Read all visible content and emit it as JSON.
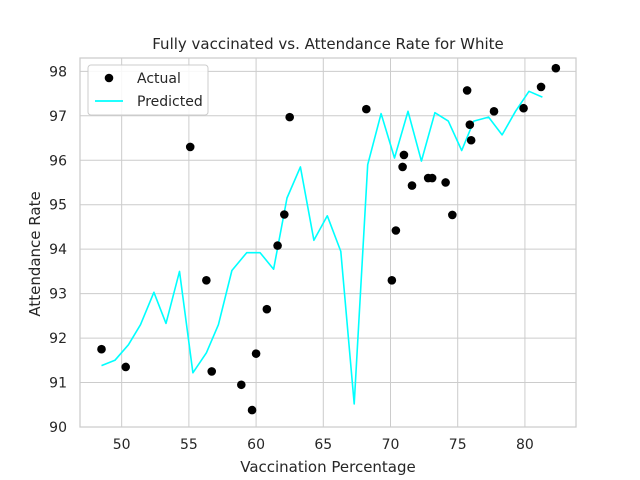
{
  "chart_data": {
    "type": "scatter",
    "title": "Fully vaccinated vs. Attendance Rate for White",
    "xlabel": "Vaccination Percentage",
    "ylabel": "Attendance Rate",
    "xlim": [
      46.9,
      83.8
    ],
    "ylim": [
      90.0,
      98.3
    ],
    "xticks": [
      50,
      55,
      60,
      65,
      70,
      75,
      80
    ],
    "yticks": [
      90,
      91,
      92,
      93,
      94,
      95,
      96,
      97,
      98
    ],
    "grid": true,
    "legend_position": "top-left",
    "series": [
      {
        "name": "Actual",
        "kind": "scatter",
        "color": "#000000",
        "points": [
          [
            48.5,
            91.75
          ],
          [
            50.3,
            91.35
          ],
          [
            55.1,
            96.3
          ],
          [
            56.3,
            93.3
          ],
          [
            56.7,
            91.25
          ],
          [
            58.9,
            90.95
          ],
          [
            59.7,
            90.38
          ],
          [
            60.0,
            91.65
          ],
          [
            60.8,
            92.65
          ],
          [
            61.6,
            94.08
          ],
          [
            62.1,
            94.78
          ],
          [
            62.5,
            96.97
          ],
          [
            68.2,
            97.15
          ],
          [
            70.1,
            93.3
          ],
          [
            70.4,
            94.42
          ],
          [
            70.9,
            95.85
          ],
          [
            71.0,
            96.12
          ],
          [
            71.6,
            95.43
          ],
          [
            72.8,
            95.6
          ],
          [
            73.1,
            95.6
          ],
          [
            74.1,
            95.5
          ],
          [
            74.6,
            94.77
          ],
          [
            75.7,
            97.57
          ],
          [
            75.9,
            96.8
          ],
          [
            76.0,
            96.45
          ],
          [
            77.7,
            97.1
          ],
          [
            79.9,
            97.17
          ],
          [
            81.2,
            97.65
          ],
          [
            82.3,
            98.07
          ]
        ]
      },
      {
        "name": "Predicted",
        "kind": "line",
        "color": "#00ffff",
        "points": [
          [
            48.5,
            91.38
          ],
          [
            49.5,
            91.5
          ],
          [
            50.5,
            91.85
          ],
          [
            51.4,
            92.3
          ],
          [
            52.4,
            93.03
          ],
          [
            53.3,
            92.33
          ],
          [
            54.3,
            93.5
          ],
          [
            55.3,
            91.22
          ],
          [
            56.3,
            91.67
          ],
          [
            57.2,
            92.3
          ],
          [
            58.2,
            93.52
          ],
          [
            59.3,
            93.92
          ],
          [
            60.3,
            93.92
          ],
          [
            61.3,
            93.55
          ],
          [
            62.3,
            95.15
          ],
          [
            63.3,
            95.85
          ],
          [
            64.3,
            94.2
          ],
          [
            65.3,
            94.75
          ],
          [
            66.3,
            93.95
          ],
          [
            67.3,
            90.52
          ],
          [
            68.3,
            95.9
          ],
          [
            69.3,
            97.05
          ],
          [
            70.3,
            96.05
          ],
          [
            71.3,
            97.1
          ],
          [
            72.3,
            95.98
          ],
          [
            73.3,
            97.07
          ],
          [
            74.3,
            96.88
          ],
          [
            75.3,
            96.22
          ],
          [
            76.2,
            96.88
          ],
          [
            77.3,
            96.97
          ],
          [
            78.3,
            96.57
          ],
          [
            79.3,
            97.1
          ],
          [
            80.3,
            97.55
          ],
          [
            81.3,
            97.42
          ]
        ]
      }
    ]
  }
}
